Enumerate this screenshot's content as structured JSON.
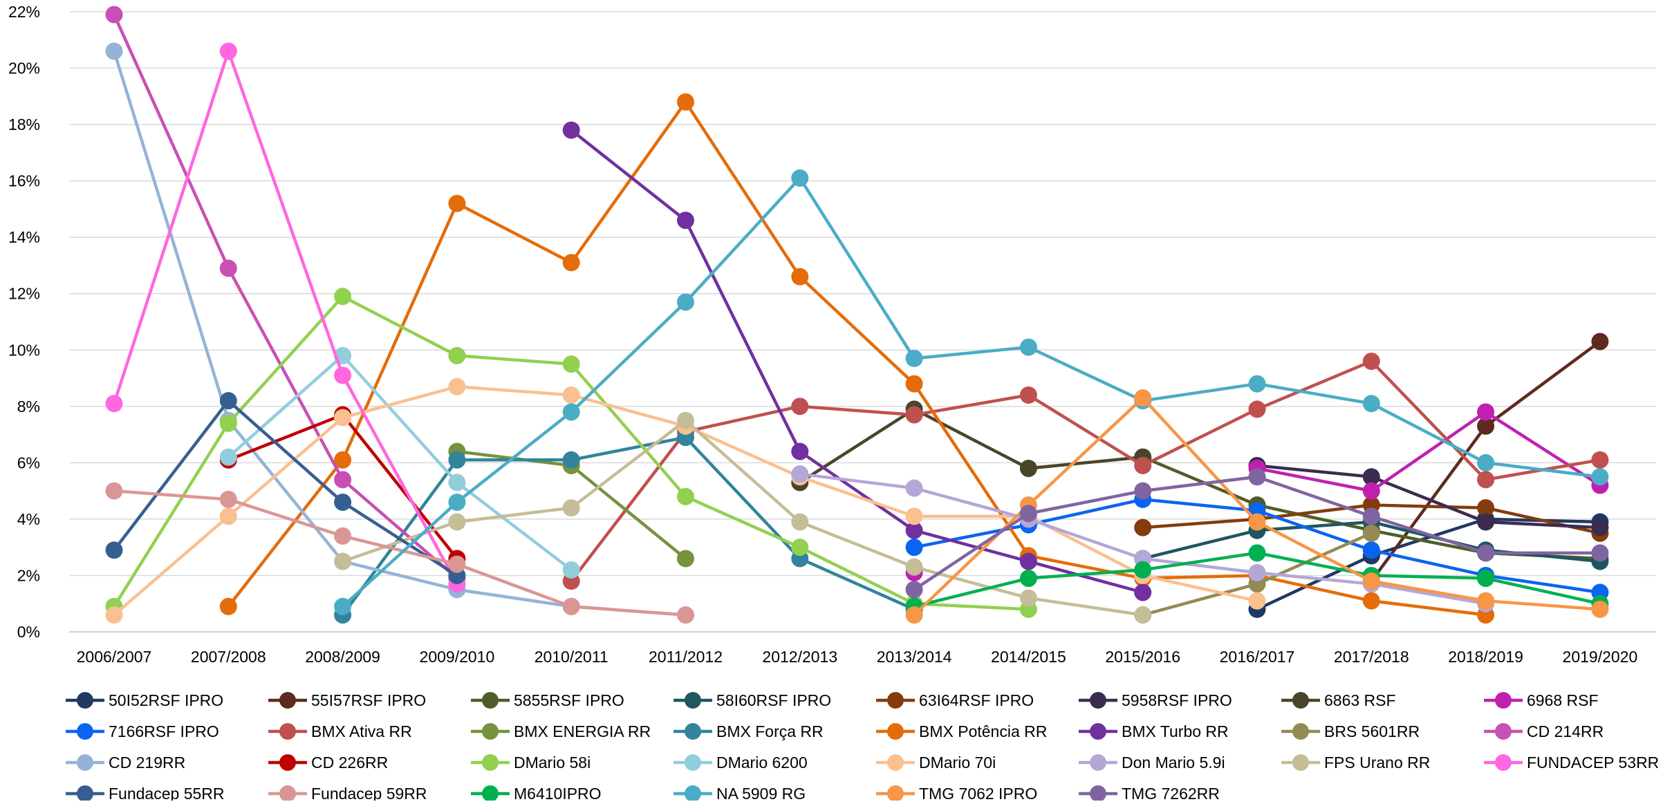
{
  "chart_data": {
    "type": "line",
    "title": "",
    "xlabel": "",
    "ylabel": "",
    "ylim": [
      0,
      22
    ],
    "ytick_values": [
      0,
      2,
      4,
      6,
      8,
      10,
      12,
      14,
      16,
      18,
      20,
      22
    ],
    "ytick_suffix": "%",
    "grid": "horizontal",
    "legend_position": "bottom",
    "categories": [
      "2006/2007",
      "2007/2008",
      "2008/2009",
      "2009/2010",
      "2010/2011",
      "2011/2012",
      "2012/2013",
      "2013/2014",
      "2014/2015",
      "2015/2016",
      "2016/2017",
      "2017/2018",
      "2018/2019",
      "2019/2020"
    ],
    "series": [
      {
        "name": "50I52RSF IPRO",
        "color": "#203864",
        "values": [
          null,
          null,
          null,
          null,
          null,
          null,
          null,
          null,
          null,
          null,
          0.8,
          2.7,
          4.0,
          3.9
        ]
      },
      {
        "name": "55I57RSF IPRO",
        "color": "#5e2a1e",
        "values": [
          null,
          null,
          null,
          null,
          null,
          null,
          null,
          null,
          null,
          null,
          null,
          1.8,
          7.3,
          10.3
        ]
      },
      {
        "name": "5855RSF IPRO",
        "color": "#4e5e26",
        "values": [
          null,
          null,
          null,
          null,
          null,
          null,
          null,
          null,
          null,
          6.2,
          4.5,
          3.6,
          2.8,
          2.6
        ]
      },
      {
        "name": "58I60RSF IPRO",
        "color": "#1f5660",
        "values": [
          null,
          null,
          null,
          null,
          null,
          null,
          null,
          null,
          null,
          2.6,
          3.6,
          3.9,
          2.9,
          2.5
        ]
      },
      {
        "name": "63I64RSF IPRO",
        "color": "#843c0c",
        "values": [
          null,
          null,
          null,
          null,
          null,
          null,
          null,
          null,
          null,
          3.7,
          4.0,
          4.5,
          4.4,
          3.5
        ]
      },
      {
        "name": "5958RSF IPRO",
        "color": "#3b2c4f",
        "values": [
          null,
          null,
          null,
          null,
          null,
          null,
          null,
          null,
          null,
          null,
          5.9,
          5.5,
          3.9,
          3.7
        ]
      },
      {
        "name": "6863 RSF",
        "color": "#4a452a",
        "values": [
          null,
          null,
          null,
          null,
          null,
          null,
          5.3,
          7.9,
          5.8,
          6.2,
          null,
          null,
          null,
          null
        ]
      },
      {
        "name": "6968 RSF",
        "color": "#c020b0",
        "values": [
          null,
          null,
          null,
          null,
          null,
          null,
          null,
          2.1,
          null,
          null,
          5.8,
          5.0,
          7.8,
          5.2
        ]
      },
      {
        "name": "7166RSF IPRO",
        "color": "#0a64f0",
        "values": [
          null,
          null,
          null,
          null,
          null,
          null,
          null,
          3.0,
          3.8,
          4.7,
          4.3,
          2.9,
          2.0,
          1.4
        ]
      },
      {
        "name": "BMX Ativa RR",
        "color": "#c0504d",
        "values": [
          null,
          null,
          null,
          null,
          1.8,
          7.1,
          8.0,
          7.7,
          8.4,
          5.9,
          7.9,
          9.6,
          5.4,
          6.1
        ]
      },
      {
        "name": "BMX ENERGIA RR",
        "color": "#76923c",
        "values": [
          null,
          null,
          null,
          6.4,
          5.9,
          2.6,
          null,
          null,
          null,
          null,
          null,
          null,
          null,
          null
        ]
      },
      {
        "name": "BMX Força RR",
        "color": "#31849b",
        "values": [
          null,
          null,
          0.6,
          6.1,
          6.1,
          6.9,
          2.6,
          0.8,
          null,
          null,
          null,
          null,
          null,
          null
        ]
      },
      {
        "name": "BMX Potência RR",
        "color": "#e46c0a",
        "values": [
          null,
          0.9,
          6.1,
          15.2,
          13.1,
          18.8,
          12.6,
          8.8,
          2.7,
          1.9,
          2.0,
          1.1,
          0.6,
          null
        ]
      },
      {
        "name": "BMX Turbo RR",
        "color": "#7030a0",
        "values": [
          null,
          null,
          null,
          null,
          17.8,
          14.6,
          6.4,
          3.6,
          2.5,
          1.4,
          null,
          null,
          null,
          null
        ]
      },
      {
        "name": "BRS 5601RR",
        "color": "#948a54",
        "values": [
          null,
          null,
          null,
          null,
          null,
          null,
          null,
          null,
          null,
          0.6,
          1.7,
          3.5,
          null,
          null
        ]
      },
      {
        "name": "CD 214RR",
        "color": "#c850b4",
        "values": [
          21.9,
          12.9,
          5.4,
          1.9,
          null,
          null,
          null,
          null,
          null,
          null,
          null,
          null,
          null,
          null
        ]
      },
      {
        "name": "CD 219RR",
        "color": "#95b3d7",
        "values": [
          20.6,
          7.5,
          2.5,
          1.5,
          0.9,
          0.6,
          null,
          null,
          null,
          null,
          null,
          null,
          null,
          null
        ]
      },
      {
        "name": "CD 226RR",
        "color": "#c00000",
        "values": [
          null,
          6.1,
          7.7,
          2.6,
          null,
          null,
          null,
          null,
          null,
          null,
          null,
          null,
          null,
          null
        ]
      },
      {
        "name": "DMario 58i",
        "color": "#92d050",
        "values": [
          0.9,
          7.4,
          11.9,
          9.8,
          9.5,
          4.8,
          3.0,
          1.0,
          0.8,
          null,
          null,
          null,
          null,
          null
        ]
      },
      {
        "name": "DMario 6200",
        "color": "#92cddc",
        "values": [
          null,
          6.2,
          9.8,
          5.3,
          2.2,
          null,
          null,
          null,
          null,
          null,
          null,
          null,
          null,
          null
        ]
      },
      {
        "name": "DMario 70i",
        "color": "#fac090",
        "values": [
          0.6,
          4.1,
          7.6,
          8.7,
          8.4,
          7.3,
          5.5,
          4.1,
          4.1,
          2.0,
          1.1,
          null,
          null,
          null
        ]
      },
      {
        "name": "Don Mario 5.9i",
        "color": "#b4a7d6",
        "values": [
          null,
          null,
          null,
          null,
          null,
          null,
          5.6,
          5.1,
          4.0,
          2.6,
          2.1,
          1.7,
          1.0,
          null
        ]
      },
      {
        "name": "FPS Urano RR",
        "color": "#c4bd97",
        "values": [
          null,
          null,
          2.5,
          3.9,
          4.4,
          7.5,
          3.9,
          2.3,
          1.2,
          0.6,
          null,
          null,
          null,
          null
        ]
      },
      {
        "name": "FUNDACEP 53RR",
        "color": "#ff66e0",
        "values": [
          8.1,
          20.6,
          9.1,
          1.7,
          null,
          null,
          null,
          null,
          null,
          null,
          null,
          null,
          null,
          null
        ]
      },
      {
        "name": "Fundacep 55RR",
        "color": "#365f91",
        "values": [
          2.9,
          8.2,
          4.6,
          2.0,
          null,
          null,
          null,
          null,
          null,
          null,
          null,
          null,
          null,
          null
        ]
      },
      {
        "name": "Fundacep 59RR",
        "color": "#da9694",
        "values": [
          5.0,
          4.7,
          3.4,
          2.4,
          0.9,
          0.6,
          null,
          null,
          null,
          null,
          null,
          null,
          null,
          null
        ]
      },
      {
        "name": "M6410IPRO",
        "color": "#00b050",
        "values": [
          null,
          null,
          null,
          null,
          null,
          null,
          null,
          0.9,
          1.9,
          2.2,
          2.8,
          2.0,
          1.9,
          1.0
        ]
      },
      {
        "name": "NA 5909 RG",
        "color": "#4bacc6",
        "values": [
          null,
          null,
          0.9,
          4.6,
          7.8,
          11.7,
          16.1,
          9.7,
          10.1,
          8.2,
          8.8,
          8.1,
          6.0,
          5.5
        ]
      },
      {
        "name": "TMG 7062 IPRO",
        "color": "#f79646",
        "values": [
          null,
          null,
          null,
          null,
          null,
          null,
          null,
          0.6,
          4.5,
          8.3,
          3.9,
          1.8,
          1.1,
          0.8
        ]
      },
      {
        "name": "TMG 7262RR",
        "color": "#8064a2",
        "values": [
          null,
          null,
          null,
          null,
          null,
          null,
          null,
          1.5,
          4.2,
          5.0,
          5.5,
          4.1,
          2.8,
          2.8
        ]
      }
    ]
  }
}
